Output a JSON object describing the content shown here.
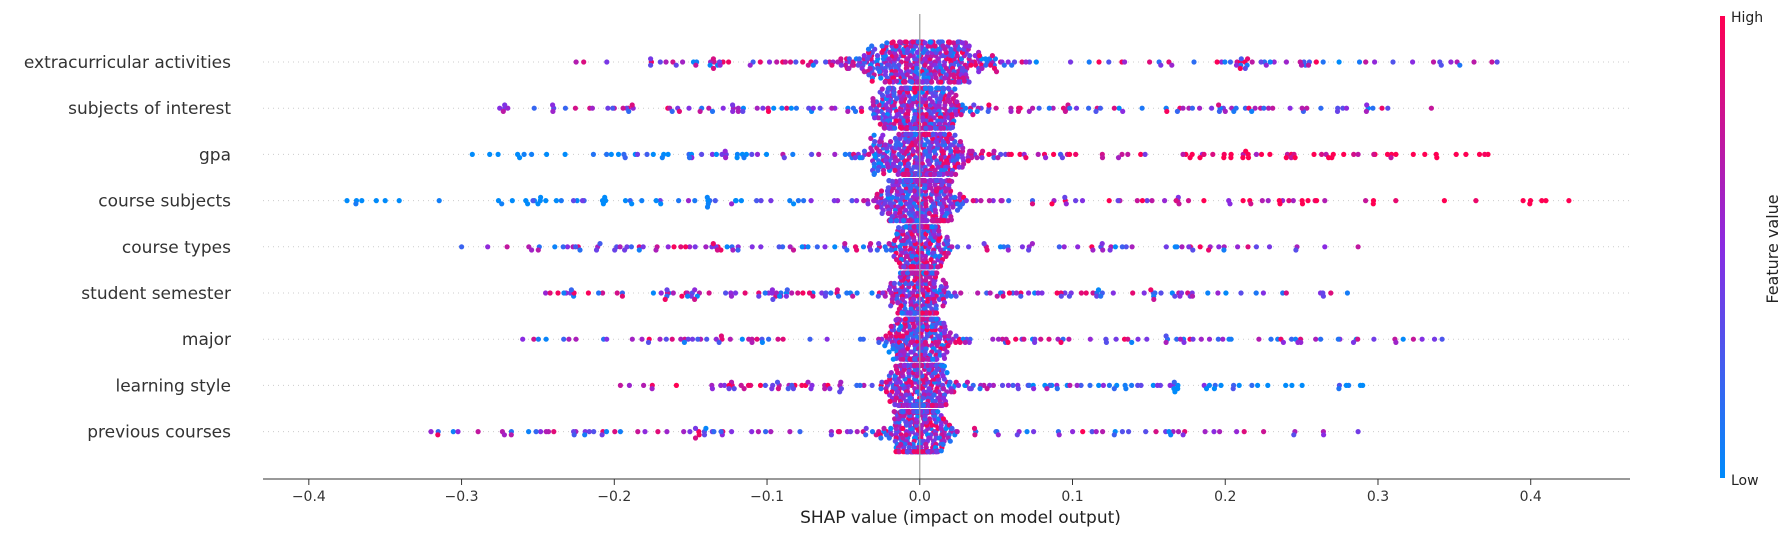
{
  "chart_data": {
    "type": "scatter",
    "subtype": "shap-beeswarm",
    "xlabel": "SHAP value (impact on model output)",
    "xlim": [
      -0.43,
      0.465
    ],
    "xticks": [
      -0.4,
      -0.3,
      -0.2,
      -0.1,
      0.0,
      0.1,
      0.2,
      0.3,
      0.4
    ],
    "xtick_labels": [
      "−0.4",
      "−0.3",
      "−0.2",
      "−0.1",
      "0.0",
      "0.1",
      "0.2",
      "0.3",
      "0.4"
    ],
    "zero_line": 0.0,
    "grid": false,
    "features": [
      {
        "name": "extracurricular activities",
        "min": -0.225,
        "max": 0.378,
        "core": 0.085,
        "extent": [
          -0.225,
          0.378
        ],
        "color_trend": "mixed",
        "samples": 500
      },
      {
        "name": "subjects of interest",
        "min": -0.275,
        "max": 0.335,
        "core": 0.055,
        "extent": [
          -0.275,
          0.335
        ],
        "color_trend": "mixed",
        "samples": 480
      },
      {
        "name": "gpa",
        "min": -0.293,
        "max": 0.372,
        "core": 0.06,
        "extent": [
          -0.293,
          0.372
        ],
        "color_trend": "high-right",
        "samples": 480
      },
      {
        "name": "course subjects",
        "min": -0.375,
        "max": 0.425,
        "core": 0.045,
        "extent": [
          -0.375,
          0.425
        ],
        "color_trend": "high-right",
        "samples": 470
      },
      {
        "name": "course types",
        "min": -0.3,
        "max": 0.287,
        "core": 0.03,
        "extent": [
          -0.3,
          0.287
        ],
        "color_trend": "mixed",
        "samples": 440
      },
      {
        "name": "student semester",
        "min": -0.245,
        "max": 0.28,
        "core": 0.03,
        "extent": [
          -0.245,
          0.28
        ],
        "color_trend": "mixed",
        "samples": 440
      },
      {
        "name": "major",
        "min": -0.26,
        "max": 0.342,
        "core": 0.035,
        "extent": [
          -0.26,
          0.342
        ],
        "color_trend": "mixed",
        "samples": 440
      },
      {
        "name": "learning style",
        "min": -0.196,
        "max": 0.29,
        "core": 0.035,
        "extent": [
          -0.196,
          0.29
        ],
        "color_trend": "high-left",
        "samples": 440
      },
      {
        "name": "previous courses",
        "min": -0.32,
        "max": 0.287,
        "core": 0.035,
        "extent": [
          -0.32,
          0.287
        ],
        "color_trend": "mixed",
        "samples": 430
      }
    ],
    "colorbar": {
      "title": "Feature value",
      "high_label": "High",
      "low_label": "Low",
      "high_color": "#ff0052",
      "mid_color": "#8a2be2",
      "low_color": "#008bfb"
    }
  }
}
